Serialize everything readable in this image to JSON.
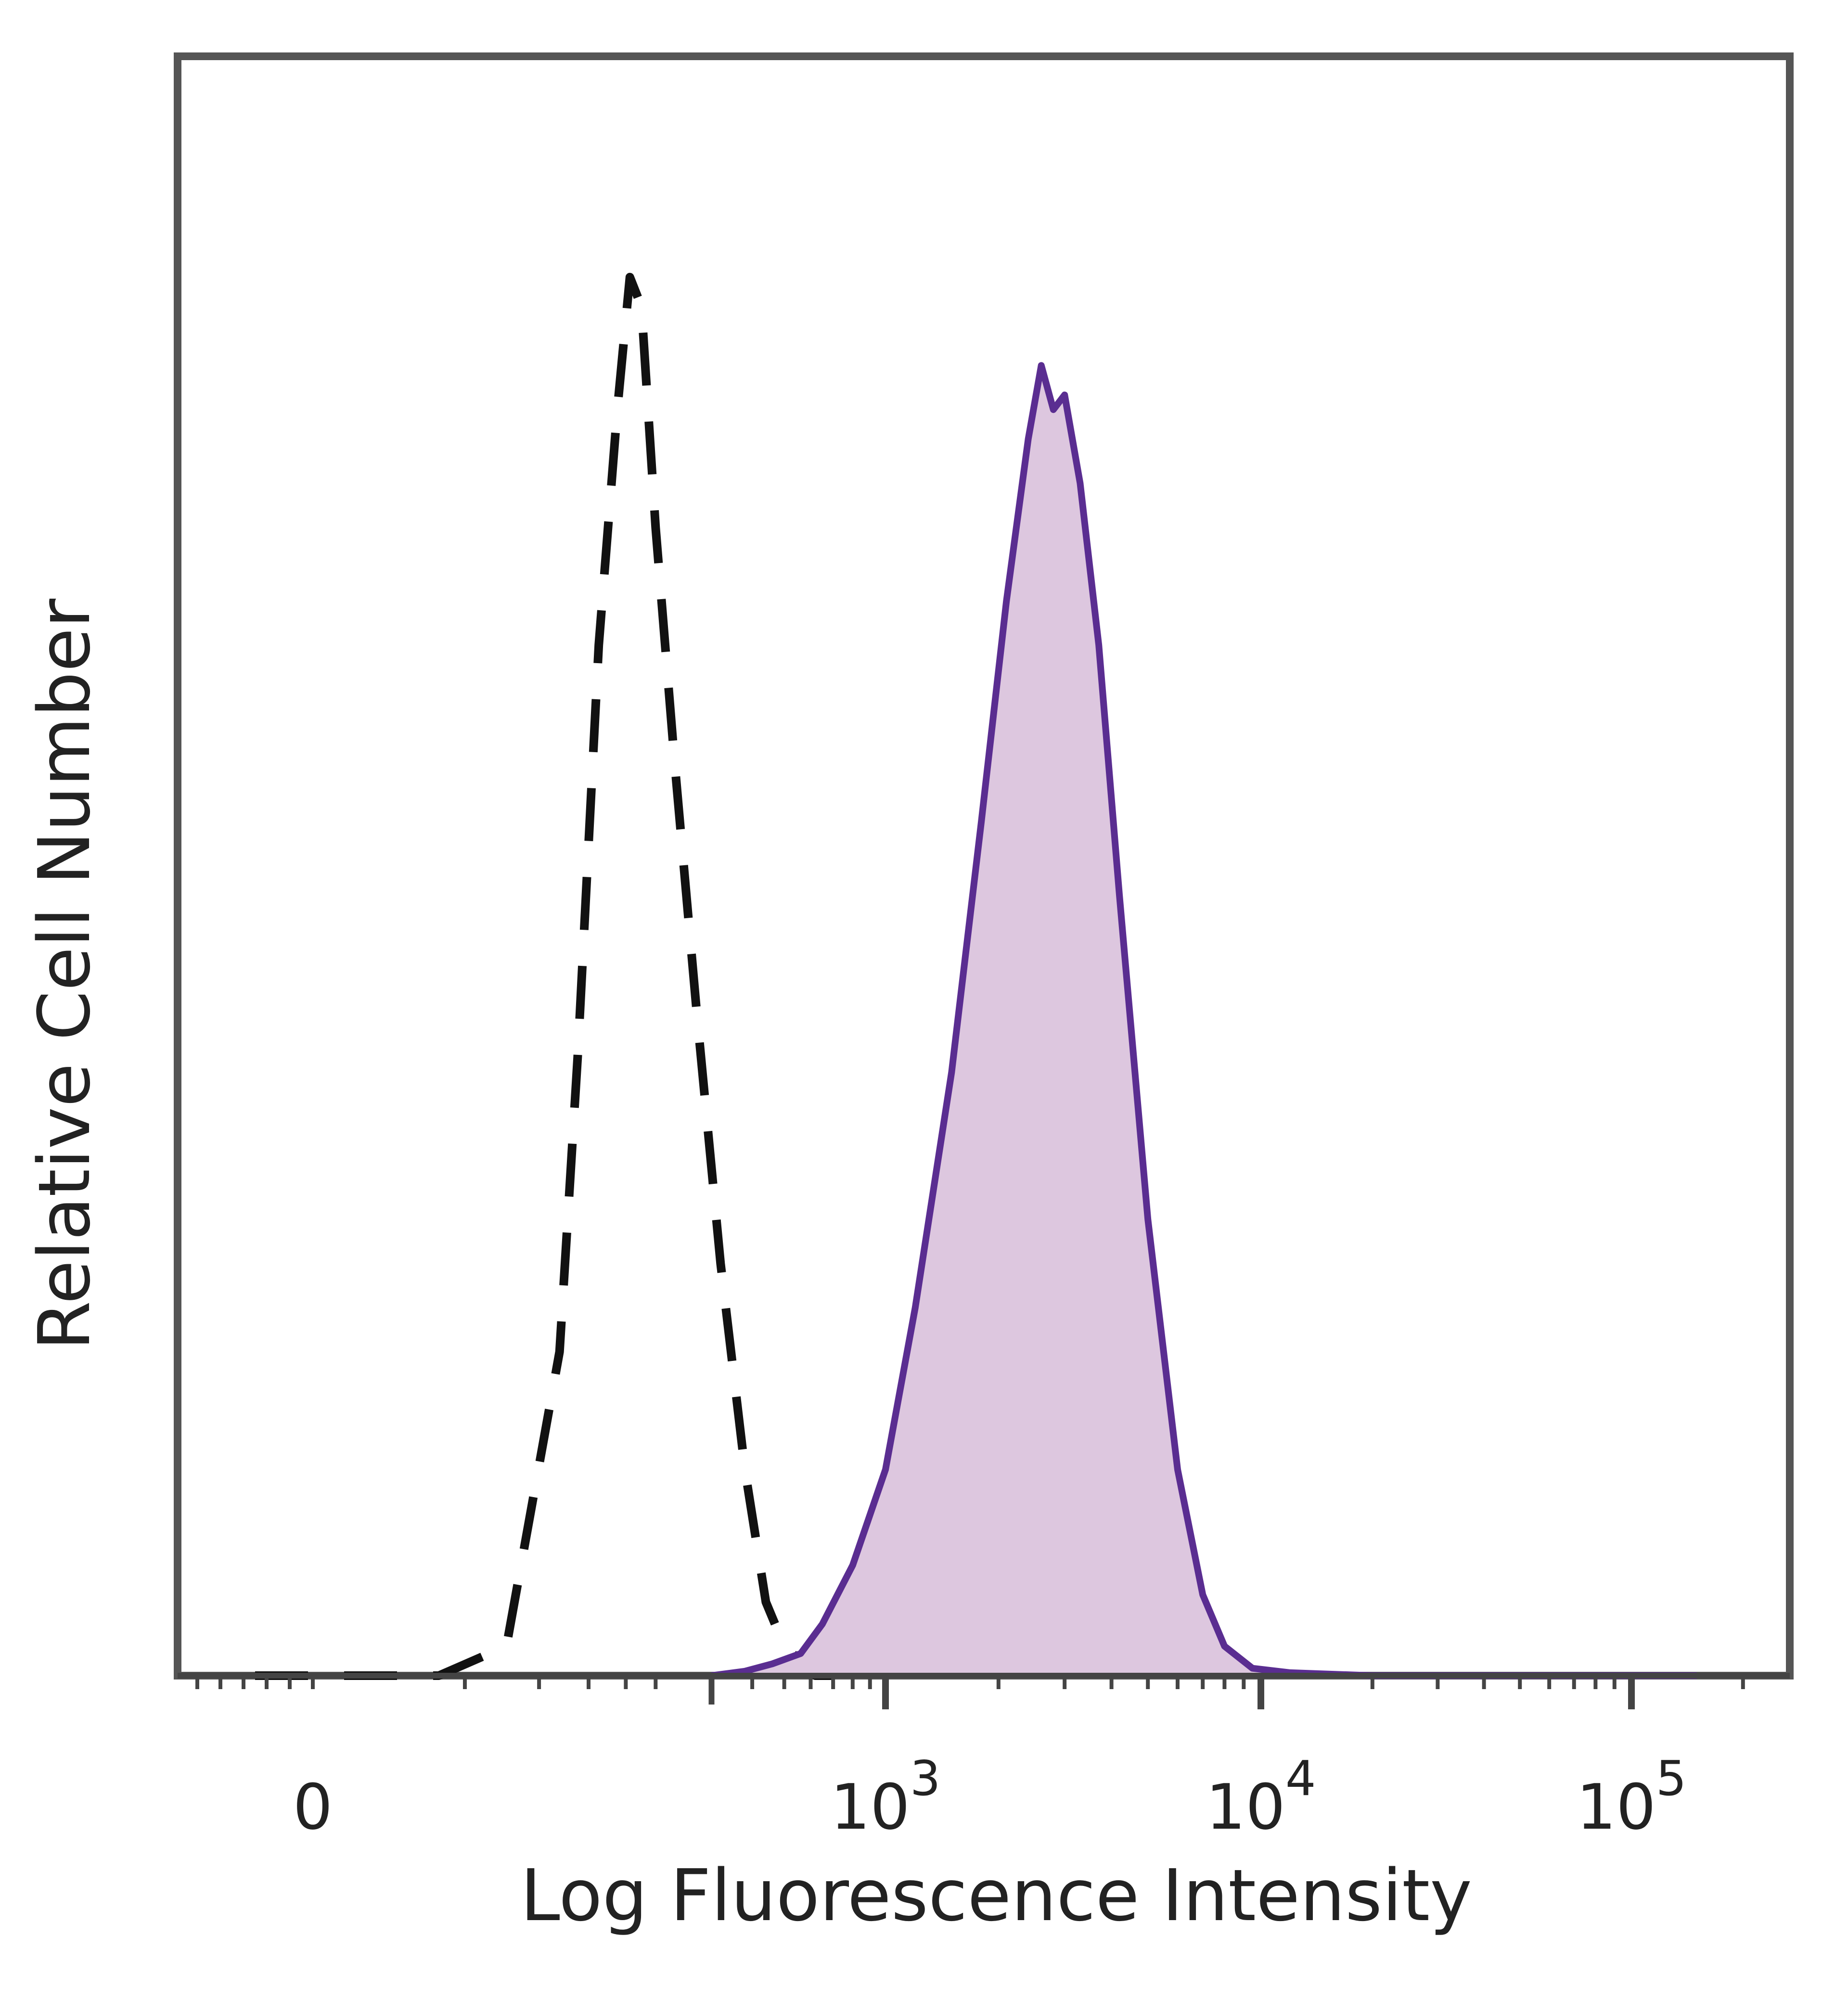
{
  "chart_data": {
    "type": "area",
    "xlabel": "Log Fluorescence Intensity",
    "ylabel": "Relative Cell Number",
    "x_scale": "biexponential",
    "y_axis_tick_labels": false,
    "grid": false,
    "legend": "none",
    "tick_labels": [
      {
        "value": 0,
        "mantissa": "0",
        "exponent": ""
      },
      {
        "value": 1000,
        "mantissa": "10",
        "exponent": "3"
      },
      {
        "value": 10000,
        "mantissa": "10",
        "exponent": "4"
      },
      {
        "value": 100000,
        "mantissa": "10",
        "exponent": "5"
      }
    ],
    "series": [
      {
        "style": "dashed",
        "color": "#111111",
        "filled": false,
        "x": [
          -100,
          30,
          60,
          95,
          110,
          130,
          150,
          165,
          180,
          200,
          230,
          270,
          320,
          380,
          440,
          500,
          560,
          620,
          700
        ],
        "y": [
          0,
          0,
          2,
          22,
          42,
          70,
          86,
          95,
          93,
          78,
          62,
          45,
          28,
          14,
          5,
          2,
          1,
          0,
          0
        ]
      },
      {
        "style": "solid",
        "color": "#5a2d91",
        "fill": "#ddc7df",
        "filled": true,
        "x": [
          300,
          380,
          460,
          560,
          650,
          800,
          1000,
          1200,
          1500,
          1800,
          2100,
          2400,
          2600,
          2800,
          3000,
          3300,
          3700,
          4200,
          5000,
          6000,
          7000,
          8000,
          9500,
          12000,
          20000,
          50000,
          150000
        ],
        "y": [
          0,
          0.3,
          0.8,
          1.5,
          3.5,
          7.5,
          14,
          25,
          41,
          58,
          73,
          84,
          89,
          86,
          87,
          81,
          70,
          53,
          31,
          14,
          5.5,
          2,
          0.5,
          0.2,
          0,
          0,
          0
        ]
      }
    ]
  }
}
